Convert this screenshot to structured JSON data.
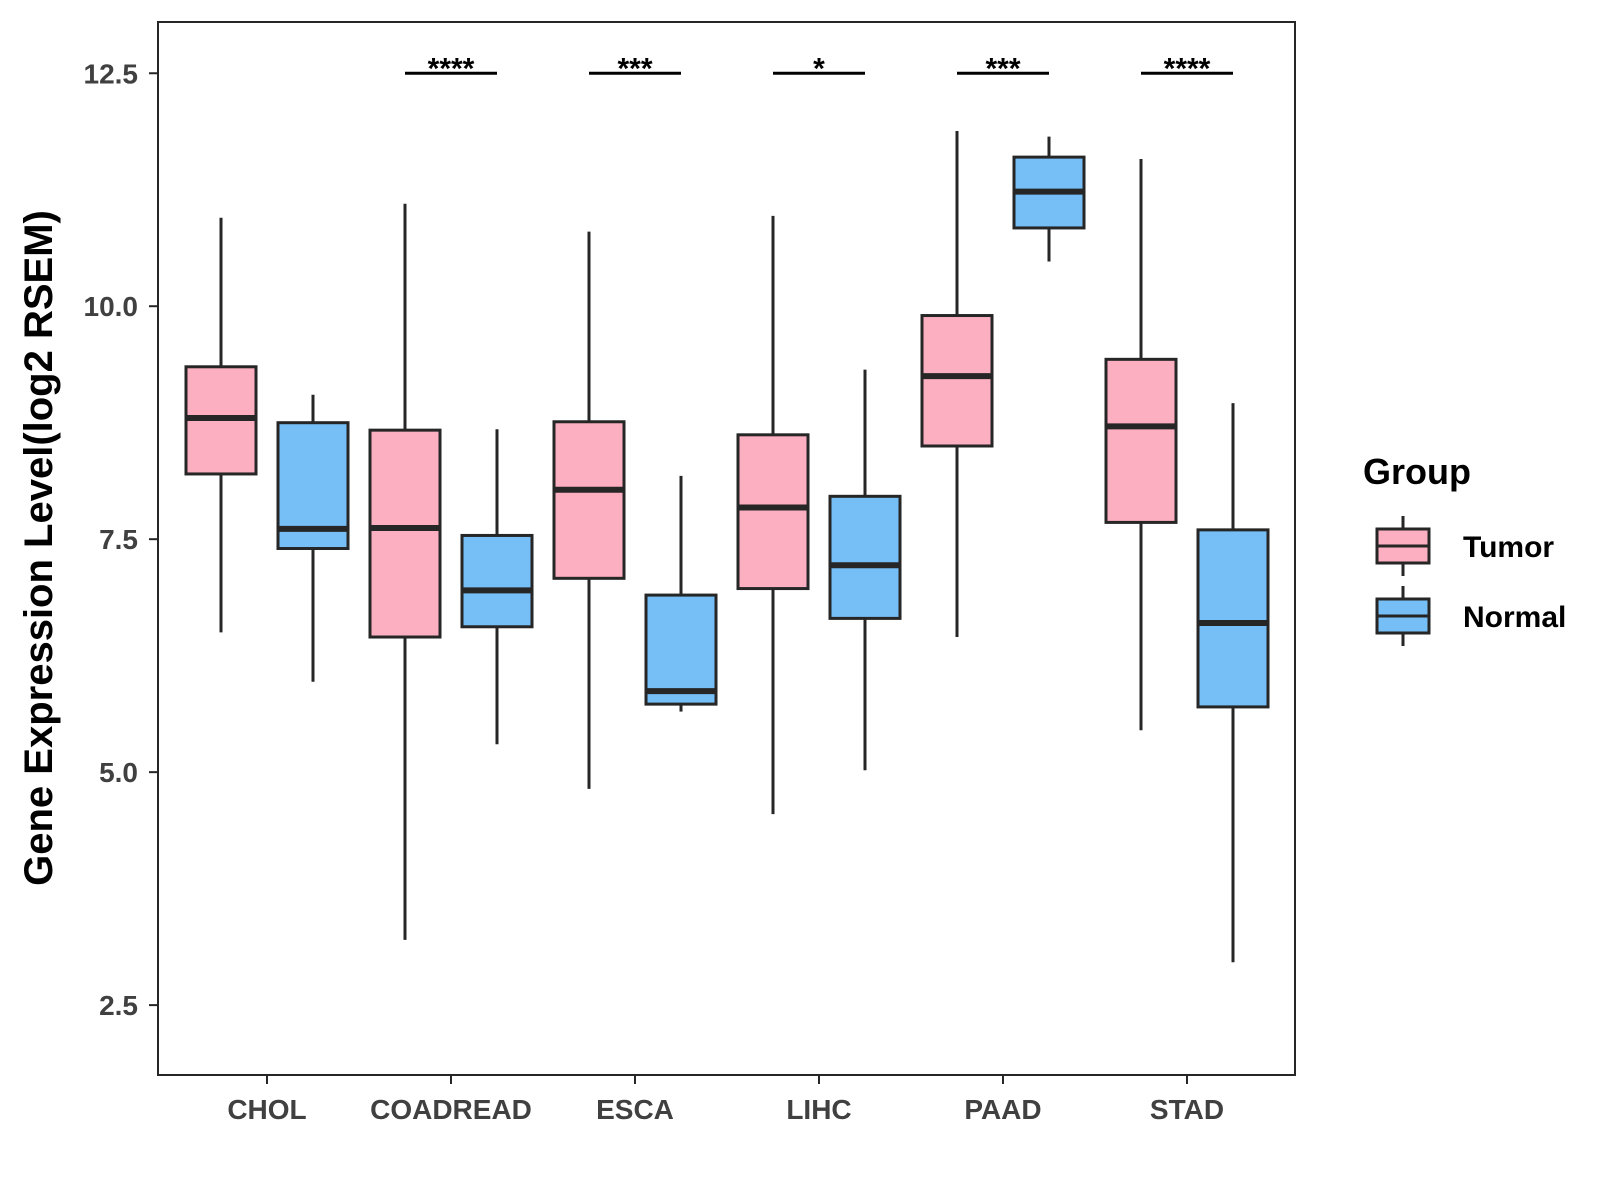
{
  "chart_data": {
    "type": "boxplot",
    "title": "",
    "xlabel": "",
    "ylabel": "Gene Expression Level(log2 RSEM)",
    "ylim": [
      1.75,
      13.05
    ],
    "yticks": [
      2.5,
      5.0,
      7.5,
      10.0,
      12.5
    ],
    "ytick_labels": [
      "2.5",
      "5.0",
      "7.5",
      "10.0",
      "12.5"
    ],
    "categories": [
      "CHOL",
      "COADREAD",
      "ESCA",
      "LIHC",
      "PAAD",
      "STAD"
    ],
    "legend": {
      "title": "Group",
      "position": "right",
      "entries": [
        "Tumor",
        "Normal"
      ]
    },
    "colors": {
      "Tumor": "#FCAFC0",
      "Normal": "#75BEF6",
      "line": "#262626",
      "frame": "#262626"
    },
    "series": [
      {
        "name": "Tumor",
        "boxes": [
          {
            "min": 6.5,
            "q1": 8.2,
            "median": 8.8,
            "q3": 9.35,
            "max": 10.95
          },
          {
            "min": 3.2,
            "q1": 6.45,
            "median": 7.62,
            "q3": 8.67,
            "max": 11.1
          },
          {
            "min": 4.82,
            "q1": 7.08,
            "median": 8.03,
            "q3": 8.76,
            "max": 10.8
          },
          {
            "min": 4.55,
            "q1": 6.97,
            "median": 7.84,
            "q3": 8.62,
            "max": 10.97
          },
          {
            "min": 6.45,
            "q1": 8.5,
            "median": 9.25,
            "q3": 9.9,
            "max": 11.88
          },
          {
            "min": 5.45,
            "q1": 7.68,
            "median": 8.71,
            "q3": 9.43,
            "max": 11.58
          }
        ]
      },
      {
        "name": "Normal",
        "boxes": [
          {
            "min": 5.97,
            "q1": 7.4,
            "median": 7.61,
            "q3": 8.75,
            "max": 9.05
          },
          {
            "min": 5.3,
            "q1": 6.56,
            "median": 6.95,
            "q3": 7.54,
            "max": 8.68
          },
          {
            "min": 5.65,
            "q1": 5.73,
            "median": 5.87,
            "q3": 6.9,
            "max": 8.18
          },
          {
            "min": 5.02,
            "q1": 6.65,
            "median": 7.22,
            "q3": 7.96,
            "max": 9.32
          },
          {
            "min": 10.48,
            "q1": 10.84,
            "median": 11.23,
            "q3": 11.6,
            "max": 11.82
          },
          {
            "min": 2.96,
            "q1": 5.7,
            "median": 6.6,
            "q3": 7.6,
            "max": 8.96
          }
        ]
      }
    ],
    "significance": [
      {
        "category": "COADREAD",
        "label": "****"
      },
      {
        "category": "ESCA",
        "label": "***"
      },
      {
        "category": "LIHC",
        "label": "*"
      },
      {
        "category": "PAAD",
        "label": "***"
      },
      {
        "category": "STAD",
        "label": "****"
      }
    ],
    "significance_y": 12.5
  }
}
